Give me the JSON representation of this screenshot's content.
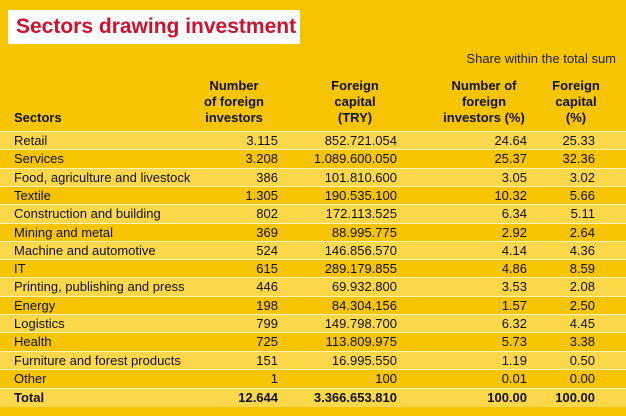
{
  "header": {
    "title": "Sectors drawing investment",
    "subtitle": "Share within the total sum"
  },
  "table": {
    "columns": [
      [
        "Sectors"
      ],
      [
        "Number",
        "of foreign",
        "investors"
      ],
      [
        "Foreign",
        "capital",
        "(TRY)"
      ],
      [
        "Number of",
        "foreign",
        "investors (%)"
      ],
      [
        "Foreign",
        "capital",
        "(%)"
      ]
    ],
    "rows": [
      [
        "Retail",
        "3.115",
        "852.721.054",
        "24.64",
        "25.33"
      ],
      [
        "Services",
        "3.208",
        "1.089.600.050",
        "25.37",
        "32.36"
      ],
      [
        "Food, agriculture and livestock",
        "386",
        "101.810.600",
        "3.05",
        "3.02"
      ],
      [
        "Textile",
        "1.305",
        "190.535.100",
        "10.32",
        "5.66"
      ],
      [
        "Construction and building",
        "802",
        "172.113.525",
        "6.34",
        "5.11"
      ],
      [
        "Mining and metal",
        "369",
        "88.995.775",
        "2.92",
        "2.64"
      ],
      [
        "Machine and automotive",
        "524",
        "146.856.570",
        "4.14",
        "4.36"
      ],
      [
        "IT",
        "615",
        "289.179.855",
        "4.86",
        "8.59"
      ],
      [
        "Printing, publishing and press",
        "446",
        "69.932.800",
        "3.53",
        "2.08"
      ],
      [
        "Energy",
        "198",
        "84.304.156",
        "1.57",
        "2.50"
      ],
      [
        "Logistics",
        "799",
        "149.798.700",
        "6.32",
        "4.45"
      ],
      [
        "Health",
        "725",
        "113.809.975",
        "5.73",
        "3.38"
      ],
      [
        "Furniture and forest products",
        "151",
        "16.995.550",
        "1.19",
        "0.50"
      ],
      [
        "Other",
        "1",
        "100",
        "0.01",
        "0.00"
      ]
    ],
    "total": [
      "Total",
      "12.644",
      "3.366.653.810",
      "100.00",
      "100.00"
    ]
  }
}
